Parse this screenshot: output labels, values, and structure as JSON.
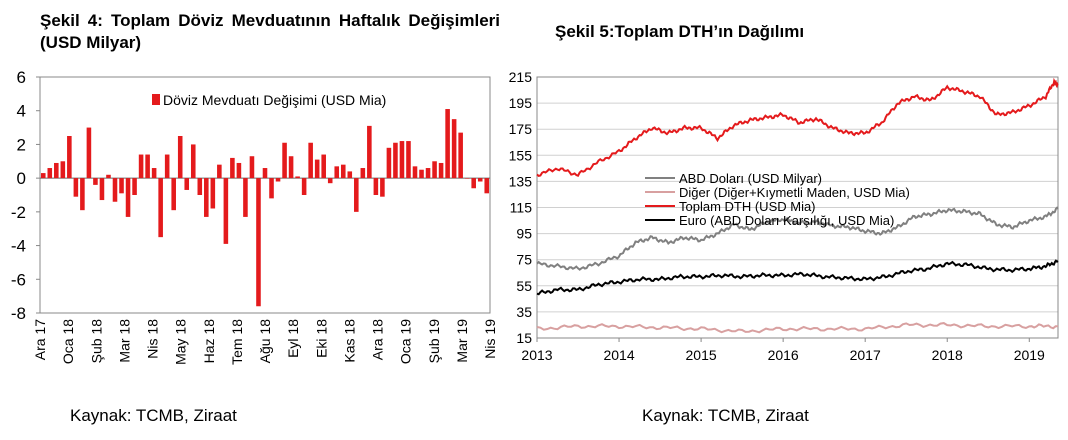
{
  "left_title": "Şekil 4: Toplam Döviz Mevduatının Haftalık Değişimleri (USD Milyar)",
  "right_title": "Şekil 5:Toplam DTH’ın Dağılımı",
  "left_source": "Kaynak: TCMB, Ziraat",
  "right_source": "Kaynak: TCMB, Ziraat",
  "chart_data": [
    {
      "type": "bar",
      "title": "Şekil 4: Toplam Döviz Mevduatının Haftalık Değişimleri (USD Milyar)",
      "ylim": [
        -8,
        6
      ],
      "yticks": [
        "6",
        "4",
        "2",
        "0",
        "-2",
        "-4",
        "-6",
        "-8"
      ],
      "xtick_labels": [
        "Ara 17",
        "Oca 18",
        "Şub 18",
        "Mar 18",
        "Nis 18",
        "May 18",
        "Haz 18",
        "Tem 18",
        "Ağu 18",
        "Eyl 18",
        "Eki 18",
        "Kas 18",
        "Ara 18",
        "Oca 19",
        "Şub 19",
        "Mar 19",
        "Nis 19"
      ],
      "color": "#e41a1c",
      "series": [
        {
          "name": "Döviz Mevduatı Değişimi (USD Mia)",
          "values": [
            0.3,
            0.6,
            0.9,
            1.0,
            2.5,
            -1.1,
            -1.9,
            3.0,
            -0.4,
            -1.3,
            0.2,
            -1.4,
            -0.9,
            -2.3,
            -1.0,
            1.4,
            1.4,
            0.6,
            -3.5,
            1.4,
            -1.9,
            2.5,
            -0.7,
            2.0,
            -1.0,
            -2.3,
            -1.8,
            0.8,
            -3.9,
            1.2,
            0.9,
            -2.3,
            1.3,
            -7.6,
            0.6,
            -1.2,
            -0.2,
            2.1,
            1.3,
            0.1,
            -1.0,
            2.1,
            1.1,
            1.4,
            -0.3,
            0.7,
            0.8,
            0.4,
            -2.0,
            0.6,
            3.1,
            -1.0,
            -1.1,
            1.8,
            2.1,
            2.2,
            2.2,
            0.7,
            0.5,
            0.6,
            1.0,
            0.9,
            4.1,
            3.5,
            2.7,
            0.0,
            -0.6,
            -0.2,
            -0.9
          ]
        }
      ]
    },
    {
      "type": "line",
      "title": "Şekil 5:Toplam DTH’ın Dağılımı",
      "ylim": [
        15,
        215
      ],
      "yticks": [
        215,
        195,
        175,
        155,
        135,
        115,
        95,
        75,
        55,
        35,
        15
      ],
      "xlim": [
        2013,
        2019.35
      ],
      "xticks": [
        2013,
        2014,
        2015,
        2016,
        2017,
        2018,
        2019
      ],
      "legend_position": "center-left",
      "grid": true,
      "series": [
        {
          "name": "ABD Doları (USD Milyar)",
          "color": "#808080",
          "x": [
            2013.0,
            2013.25,
            2013.5,
            2013.75,
            2014.0,
            2014.2,
            2014.4,
            2014.6,
            2014.8,
            2015.0,
            2015.2,
            2015.4,
            2015.6,
            2015.8,
            2016.0,
            2016.2,
            2016.4,
            2016.6,
            2016.8,
            2017.0,
            2017.2,
            2017.4,
            2017.6,
            2017.8,
            2018.0,
            2018.2,
            2018.4,
            2018.6,
            2018.8,
            2019.0,
            2019.2,
            2019.35
          ],
          "y": [
            72,
            70,
            68,
            72,
            78,
            88,
            92,
            88,
            92,
            90,
            95,
            102,
            98,
            104,
            106,
            103,
            104,
            101,
            100,
            97,
            95,
            100,
            108,
            110,
            113,
            112,
            110,
            102,
            100,
            105,
            108,
            114
          ]
        },
        {
          "name": "Diğer (Diğer+Kıymetli Maden, USD Mia)",
          "color": "#d8a0a0",
          "x": [
            2013.0,
            2013.5,
            2014.0,
            2014.5,
            2015.0,
            2015.5,
            2016.0,
            2016.5,
            2017.0,
            2017.5,
            2018.0,
            2018.5,
            2019.0,
            2019.35
          ],
          "y": [
            22,
            24,
            24,
            23,
            22,
            20,
            22,
            22,
            22,
            25,
            25,
            24,
            24,
            24
          ]
        },
        {
          "name": "Toplam DTH (USD Mia)",
          "color": "#e41a1c",
          "x": [
            2013.0,
            2013.25,
            2013.5,
            2013.75,
            2014.0,
            2014.2,
            2014.4,
            2014.6,
            2014.8,
            2015.0,
            2015.2,
            2015.4,
            2015.6,
            2015.8,
            2016.0,
            2016.2,
            2016.4,
            2016.6,
            2016.8,
            2017.0,
            2017.2,
            2017.4,
            2017.6,
            2017.8,
            2018.0,
            2018.2,
            2018.4,
            2018.6,
            2018.8,
            2019.0,
            2019.2,
            2019.3,
            2019.35
          ],
          "y": [
            140,
            145,
            140,
            150,
            158,
            168,
            176,
            172,
            176,
            176,
            168,
            178,
            182,
            184,
            186,
            180,
            183,
            176,
            172,
            172,
            180,
            195,
            200,
            197,
            207,
            204,
            200,
            186,
            188,
            193,
            200,
            211,
            210
          ]
        },
        {
          "name": "Euro (ABD Doları Karşılığı, USD Mia)",
          "color": "#000000",
          "x": [
            2013.0,
            2013.25,
            2013.5,
            2013.75,
            2014.0,
            2014.25,
            2014.5,
            2014.75,
            2015.0,
            2015.25,
            2015.5,
            2015.75,
            2016.0,
            2016.25,
            2016.5,
            2016.75,
            2017.0,
            2017.25,
            2017.5,
            2017.75,
            2018.0,
            2018.25,
            2018.5,
            2018.75,
            2019.0,
            2019.2,
            2019.35
          ],
          "y": [
            49,
            52,
            52,
            56,
            58,
            60,
            60,
            62,
            62,
            63,
            62,
            63,
            63,
            64,
            62,
            61,
            60,
            62,
            66,
            68,
            72,
            71,
            68,
            67,
            68,
            70,
            74
          ]
        }
      ]
    }
  ]
}
